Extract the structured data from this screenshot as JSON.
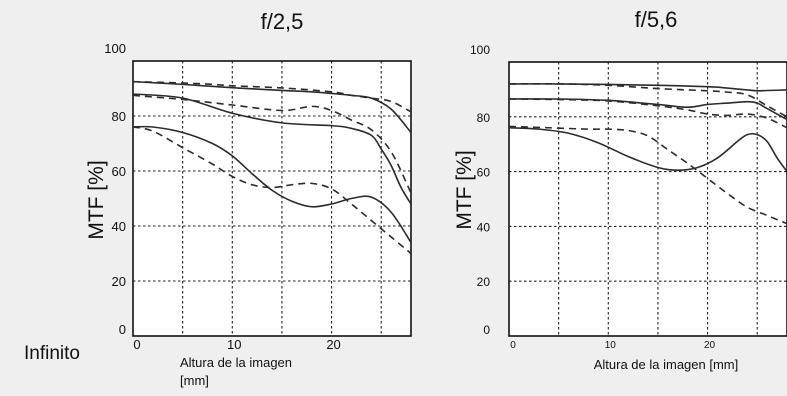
{
  "page": {
    "footer_label": "Infinito"
  },
  "chart_data": [
    {
      "type": "line",
      "title": "f/2,5",
      "xlabel": "Altura de la imagen\n[mm]",
      "ylabel": "MTF [%]",
      "xlim": [
        0,
        28
      ],
      "ylim": [
        0,
        100
      ],
      "x_ticks": [
        0,
        10,
        20
      ],
      "y_ticks": [
        0,
        20,
        40,
        60,
        80,
        100
      ],
      "grid": true,
      "series": [
        {
          "style": "solid",
          "x": [
            0,
            5,
            10,
            15,
            18,
            20,
            22,
            24,
            26,
            28
          ],
          "y": [
            92.5,
            91.5,
            90.3,
            89.3,
            88.8,
            88.2,
            87.5,
            86.5,
            82.5,
            74
          ]
        },
        {
          "style": "dashed",
          "x": [
            0,
            5,
            8,
            10,
            15,
            20,
            22,
            24,
            26,
            28
          ],
          "y": [
            92.5,
            92,
            91.5,
            91,
            90.2,
            88.8,
            87.5,
            86.5,
            85.3,
            81.5
          ]
        },
        {
          "style": "solid",
          "x": [
            0,
            5,
            10,
            15,
            20,
            22,
            24,
            25,
            26,
            27,
            28
          ],
          "y": [
            88,
            86.5,
            81,
            77.5,
            76.5,
            75.5,
            73,
            68,
            62,
            54,
            48
          ]
        },
        {
          "style": "dashed",
          "x": [
            0,
            5,
            10,
            15,
            18,
            20,
            22,
            24,
            26,
            28
          ],
          "y": [
            87.5,
            86,
            84,
            82,
            83.5,
            82,
            78.5,
            75,
            67,
            52
          ]
        },
        {
          "style": "solid",
          "x": [
            0,
            2,
            5,
            8,
            10,
            12,
            14,
            16,
            18,
            20,
            22,
            24,
            26,
            28
          ],
          "y": [
            76,
            76,
            74,
            70,
            65.5,
            59,
            53,
            49,
            47,
            48,
            50,
            50.5,
            45,
            34
          ]
        },
        {
          "style": "dashed",
          "x": [
            0,
            2,
            5,
            8,
            10,
            12,
            14,
            16,
            18,
            20,
            22,
            24,
            26,
            28
          ],
          "y": [
            76,
            74.5,
            68.5,
            62.5,
            58,
            55,
            54,
            55,
            55.5,
            53.5,
            48,
            42,
            36,
            30
          ]
        }
      ]
    },
    {
      "type": "line",
      "title": "f/5,6",
      "xlabel": "Altura de la imagen [mm]",
      "ylabel": "MTF [%]",
      "xlim": [
        0,
        28
      ],
      "ylim": [
        0,
        100
      ],
      "x_ticks": [
        0,
        10,
        20
      ],
      "y_ticks": [
        0,
        20,
        40,
        60,
        80,
        100
      ],
      "grid": true,
      "series": [
        {
          "style": "solid",
          "x": [
            0,
            5,
            10,
            15,
            20,
            22,
            24,
            25,
            26,
            28
          ],
          "y": [
            92,
            92,
            91.8,
            91.5,
            91,
            90.5,
            89.8,
            89.5,
            89.6,
            89.8
          ]
        },
        {
          "style": "dashed",
          "x": [
            0,
            5,
            10,
            15,
            20,
            22,
            24,
            26,
            28
          ],
          "y": [
            92,
            92,
            91.5,
            90.3,
            89.5,
            89,
            88,
            84,
            80
          ]
        },
        {
          "style": "solid",
          "x": [
            0,
            5,
            10,
            15,
            18,
            20,
            22,
            24,
            25,
            26,
            28
          ],
          "y": [
            86.5,
            86.5,
            86,
            84.5,
            83.5,
            84.5,
            85,
            85.5,
            85,
            83,
            79
          ]
        },
        {
          "style": "dashed",
          "x": [
            0,
            5,
            10,
            15,
            18,
            20,
            22,
            24,
            26,
            28
          ],
          "y": [
            86.5,
            86.3,
            85.8,
            84,
            82.5,
            81,
            80.5,
            81,
            79.5,
            76
          ]
        },
        {
          "style": "solid",
          "x": [
            0,
            3,
            6,
            9,
            12,
            15,
            17,
            19,
            21,
            23,
            24,
            25,
            26,
            27,
            28
          ],
          "y": [
            76,
            75.5,
            74,
            70.5,
            65.5,
            61.5,
            60.5,
            61.5,
            65,
            71,
            73.5,
            73.5,
            71,
            65,
            60
          ]
        },
        {
          "style": "dashed",
          "x": [
            0,
            4,
            8,
            10,
            12,
            14,
            16,
            18,
            20,
            22,
            24,
            26,
            28
          ],
          "y": [
            76.5,
            76,
            75.5,
            75.5,
            75,
            73,
            68,
            63,
            57.5,
            52,
            47,
            44,
            41
          ]
        }
      ]
    }
  ]
}
